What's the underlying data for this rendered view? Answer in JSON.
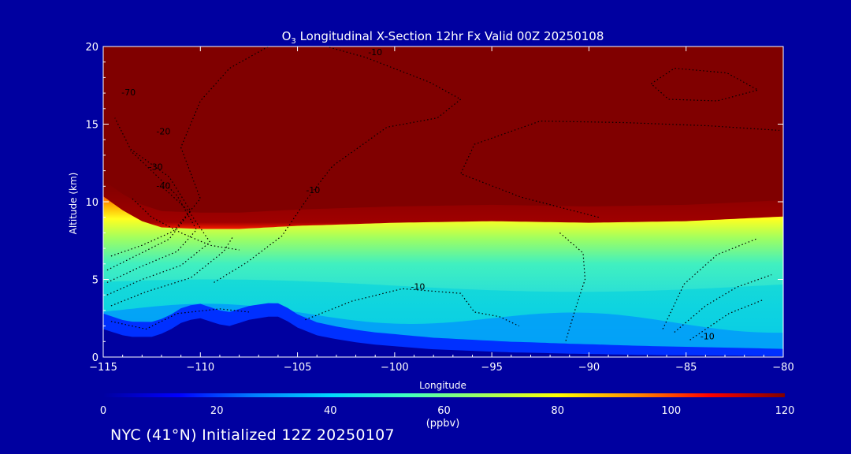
{
  "chart_data": {
    "type": "heatmap",
    "title_prefix": "O",
    "title_sub": "3",
    "title_rest": " Longitudinal X-Section 12hr  Fx Valid 00Z 20250108",
    "xlabel": "Longitude",
    "ylabel": "Altitude (km)",
    "xlim": [
      -115,
      -80
    ],
    "ylim": [
      0,
      20
    ],
    "x_ticks": [
      -115,
      -110,
      -105,
      -100,
      -95,
      -90,
      -85,
      -80
    ],
    "x_tick_labels": [
      "−115",
      "−110",
      "−105",
      "−100",
      "−95",
      "−90",
      "−85",
      "−80"
    ],
    "y_ticks": [
      0,
      5,
      10,
      15,
      20
    ],
    "y_tick_labels": [
      "0",
      "5",
      "10",
      "15",
      "20"
    ],
    "colorbar": {
      "min": 0,
      "max": 120,
      "unit": "(ppbv)",
      "ticks": [
        0,
        20,
        40,
        60,
        80,
        100,
        120
      ],
      "tick_labels": [
        "0",
        "20",
        "40",
        "60",
        "80",
        "100",
        "120"
      ],
      "colors": [
        "#0000a0",
        "#0000ff",
        "#0080ff",
        "#00d8ff",
        "#40ffc0",
        "#a0ff60",
        "#ffff00",
        "#ff9000",
        "#ff0000",
        "#800000"
      ]
    },
    "tropopause_height_km": {
      "lon": [
        -115,
        -114,
        -113,
        -112,
        -110,
        -108,
        -105,
        -100,
        -95,
        -90,
        -85,
        -80
      ],
      "alt": [
        10.5,
        9.6,
        8.9,
        8.5,
        8.4,
        8.4,
        8.6,
        8.8,
        8.9,
        8.8,
        8.9,
        9.2
      ]
    },
    "terrain_km": {
      "lon": [
        -115,
        -114.5,
        -114,
        -113.5,
        -113,
        -112.5,
        -112,
        -111.5,
        -111,
        -110.5,
        -110,
        -109.5,
        -109,
        -108.5,
        -108,
        -107.5,
        -107,
        -106.5,
        -106,
        -105.5,
        -105,
        -104,
        -103,
        -102,
        -101,
        -100,
        -99,
        -98,
        -97,
        -96,
        -95,
        -94,
        -93,
        -92,
        -91,
        -90,
        -88,
        -86,
        -84,
        -82,
        -80
      ],
      "alt": [
        1.8,
        1.6,
        1.4,
        1.3,
        1.3,
        1.3,
        1.5,
        1.8,
        2.2,
        2.4,
        2.5,
        2.3,
        2.1,
        2.0,
        2.2,
        2.4,
        2.5,
        2.6,
        2.6,
        2.3,
        1.9,
        1.4,
        1.15,
        0.95,
        0.8,
        0.7,
        0.6,
        0.5,
        0.45,
        0.4,
        0.35,
        0.3,
        0.28,
        0.25,
        0.22,
        0.2,
        0.15,
        0.12,
        0.1,
        0.08,
        0.05
      ]
    },
    "contour_labels": [
      {
        "text": "-10",
        "lon": -101,
        "alt": 19.6
      },
      {
        "text": "-70",
        "lon": -113.7,
        "alt": 17.0
      },
      {
        "text": "-20",
        "lon": -111.9,
        "alt": 14.5
      },
      {
        "text": "-30",
        "lon": -112.3,
        "alt": 12.2
      },
      {
        "text": "-40",
        "lon": -111.9,
        "alt": 11.0
      },
      {
        "text": "-10",
        "lon": -104.2,
        "alt": 10.7
      },
      {
        "text": "-10",
        "lon": -98.8,
        "alt": 4.5
      },
      {
        "text": "-10",
        "lon": -83.9,
        "alt": 1.3
      }
    ],
    "footer": "NYC (41°N) Initialized 12Z 20250107"
  }
}
